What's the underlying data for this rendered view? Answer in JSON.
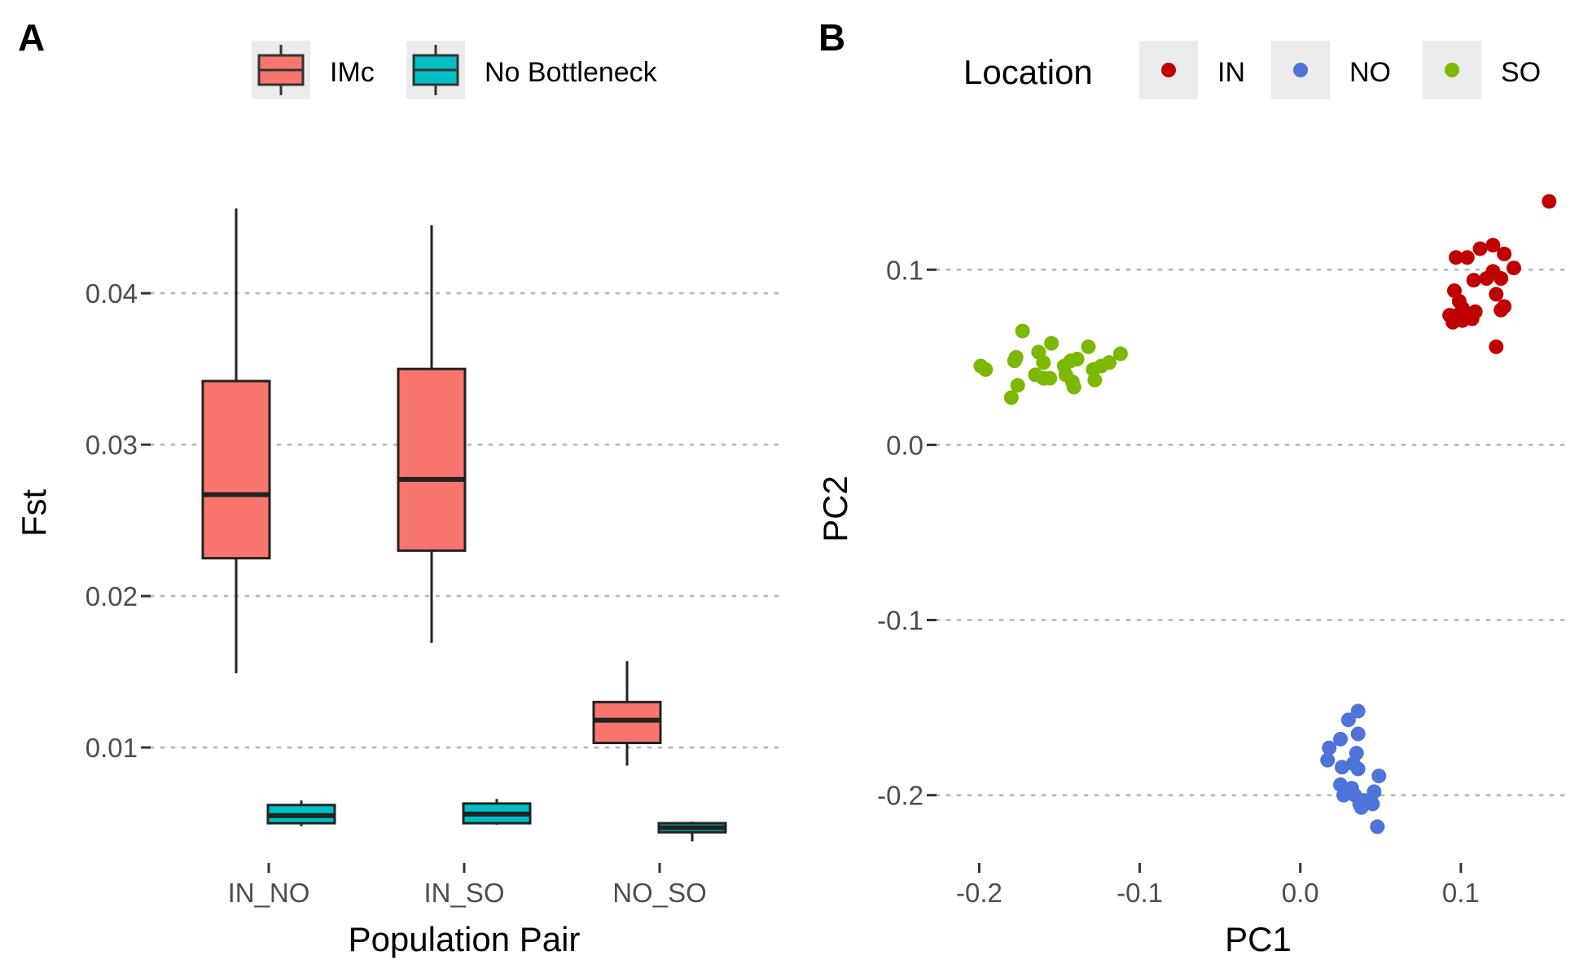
{
  "chart_data": [
    {
      "panel_label": "A",
      "type": "box",
      "xlabel": "Population Pair",
      "ylabel": "Fst",
      "ylim": [
        0.0028,
        0.047
      ],
      "yticks": [
        0.01,
        0.02,
        0.03,
        0.04
      ],
      "ytick_labels": [
        "0.01",
        "0.02",
        "0.03",
        "0.04"
      ],
      "grid": "horizontal dotted",
      "legend_position": "top",
      "categories": [
        "IN_NO",
        "IN_SO",
        "NO_SO"
      ],
      "series": [
        {
          "name": "IMc",
          "color": "#F8766D",
          "boxes": [
            {
              "min": 0.0149,
              "q1": 0.0225,
              "median": 0.0267,
              "q3": 0.0342,
              "max": 0.0456
            },
            {
              "min": 0.0169,
              "q1": 0.023,
              "median": 0.0277,
              "q3": 0.035,
              "max": 0.0445
            },
            {
              "min": 0.0088,
              "q1": 0.0103,
              "median": 0.0118,
              "q3": 0.013,
              "max": 0.0157
            }
          ]
        },
        {
          "name": "No Bottleneck",
          "color": "#00BFC4",
          "boxes": [
            {
              "min": 0.0048,
              "q1": 0.005,
              "median": 0.0055,
              "q3": 0.0062,
              "max": 0.0065
            },
            {
              "min": 0.0049,
              "q1": 0.005,
              "median": 0.0056,
              "q3": 0.0063,
              "max": 0.0066
            },
            {
              "min": 0.0038,
              "q1": 0.0044,
              "median": 0.0047,
              "q3": 0.005,
              "max": 0.0051
            }
          ]
        }
      ]
    },
    {
      "panel_label": "B",
      "type": "scatter",
      "xlabel": "PC1",
      "ylabel": "PC2",
      "xlim": [
        -0.22,
        0.165
      ],
      "ylim": [
        -0.235,
        0.148
      ],
      "xticks": [
        -0.2,
        -0.1,
        0.0,
        0.1
      ],
      "xtick_labels": [
        "-0.2",
        "-0.1",
        "0.0",
        "0.1"
      ],
      "yticks": [
        -0.2,
        -0.1,
        0.0,
        0.1
      ],
      "ytick_labels": [
        "-0.2",
        "-0.1",
        "0.0",
        "0.1"
      ],
      "grid": "horizontal dotted",
      "legend_title": "Location",
      "legend_position": "top",
      "series": [
        {
          "name": "IN",
          "color": "#C00000",
          "points": [
            [
              0.155,
              0.139
            ],
            [
              0.097,
              0.107
            ],
            [
              0.104,
              0.107
            ],
            [
              0.112,
              0.112
            ],
            [
              0.12,
              0.114
            ],
            [
              0.127,
              0.109
            ],
            [
              0.133,
              0.101
            ],
            [
              0.12,
              0.099
            ],
            [
              0.116,
              0.095
            ],
            [
              0.108,
              0.094
            ],
            [
              0.125,
              0.095
            ],
            [
              0.096,
              0.088
            ],
            [
              0.122,
              0.086
            ],
            [
              0.099,
              0.082
            ],
            [
              0.127,
              0.079
            ],
            [
              0.101,
              0.078
            ],
            [
              0.109,
              0.076
            ],
            [
              0.104,
              0.075
            ],
            [
              0.098,
              0.074
            ],
            [
              0.093,
              0.074
            ],
            [
              0.107,
              0.072
            ],
            [
              0.101,
              0.071
            ],
            [
              0.095,
              0.07
            ],
            [
              0.125,
              0.077
            ],
            [
              0.122,
              0.056
            ]
          ]
        },
        {
          "name": "NO",
          "color": "#4E73D9",
          "points": [
            [
              0.036,
              -0.152
            ],
            [
              0.03,
              -0.157
            ],
            [
              0.036,
              -0.165
            ],
            [
              0.025,
              -0.168
            ],
            [
              0.018,
              -0.173
            ],
            [
              0.035,
              -0.176
            ],
            [
              0.017,
              -0.18
            ],
            [
              0.033,
              -0.182
            ],
            [
              0.026,
              -0.184
            ],
            [
              0.036,
              -0.185
            ],
            [
              0.049,
              -0.189
            ],
            [
              0.025,
              -0.194
            ],
            [
              0.032,
              -0.196
            ],
            [
              0.046,
              -0.198
            ],
            [
              0.027,
              -0.2
            ],
            [
              0.034,
              -0.2
            ],
            [
              0.04,
              -0.203
            ],
            [
              0.037,
              -0.205
            ],
            [
              0.045,
              -0.205
            ],
            [
              0.038,
              -0.207
            ],
            [
              0.048,
              -0.218
            ]
          ]
        },
        {
          "name": "SO",
          "color": "#7CB800",
          "points": [
            [
              -0.199,
              0.045
            ],
            [
              -0.196,
              0.043
            ],
            [
              -0.173,
              0.065
            ],
            [
              -0.177,
              0.05
            ],
            [
              -0.178,
              0.048
            ],
            [
              -0.163,
              0.053
            ],
            [
              -0.16,
              0.047
            ],
            [
              -0.155,
              0.058
            ],
            [
              -0.165,
              0.04
            ],
            [
              -0.16,
              0.038
            ],
            [
              -0.156,
              0.038
            ],
            [
              -0.147,
              0.045
            ],
            [
              -0.146,
              0.04
            ],
            [
              -0.143,
              0.048
            ],
            [
              -0.139,
              0.049
            ],
            [
              -0.142,
              0.036
            ],
            [
              -0.132,
              0.056
            ],
            [
              -0.129,
              0.043
            ],
            [
              -0.128,
              0.037
            ],
            [
              -0.124,
              0.045
            ],
            [
              -0.119,
              0.047
            ],
            [
              -0.112,
              0.052
            ],
            [
              -0.176,
              0.034
            ],
            [
              -0.18,
              0.027
            ],
            [
              -0.141,
              0.033
            ]
          ]
        }
      ]
    }
  ]
}
